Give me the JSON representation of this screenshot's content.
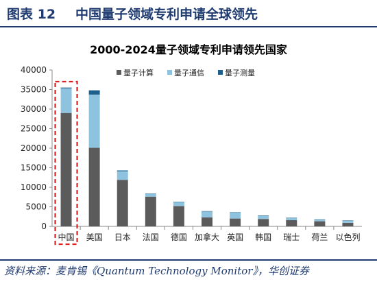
{
  "figure": {
    "label": "图表 12",
    "title": "中国量子领域专利申请全球领先",
    "source": "资料来源：麦肯锡《Quantum Technology Monitor》，华创证券"
  },
  "colors": {
    "computing": "#5b5b5b",
    "communication": "#8ec3df",
    "measurement": "#1f5f8b",
    "highlight": "#e02020",
    "header": "#1f3b70"
  },
  "chart_data": {
    "type": "bar",
    "stacked": true,
    "title": "2000-2024量子领域专利申请领先国家",
    "categories": [
      "中国",
      "美国",
      "日本",
      "法国",
      "德国",
      "加拿大",
      "英国",
      "韩国",
      "瑞士",
      "荷兰",
      "以色列"
    ],
    "series": [
      {
        "name": "量子计算",
        "values": [
          29000,
          20100,
          11900,
          7600,
          5200,
          2300,
          2000,
          1900,
          1600,
          1300,
          900
        ]
      },
      {
        "name": "量子通信",
        "values": [
          6300,
          13600,
          2200,
          700,
          1000,
          1500,
          1500,
          800,
          500,
          400,
          500
        ]
      },
      {
        "name": "量子测量",
        "values": [
          200,
          1100,
          200,
          100,
          100,
          100,
          100,
          100,
          100,
          100,
          100
        ]
      }
    ],
    "ylim": [
      0,
      40000
    ],
    "yticks": [
      0,
      5000,
      10000,
      15000,
      20000,
      25000,
      30000,
      35000,
      40000
    ],
    "highlight_category": "中国",
    "legend_position": "top"
  }
}
